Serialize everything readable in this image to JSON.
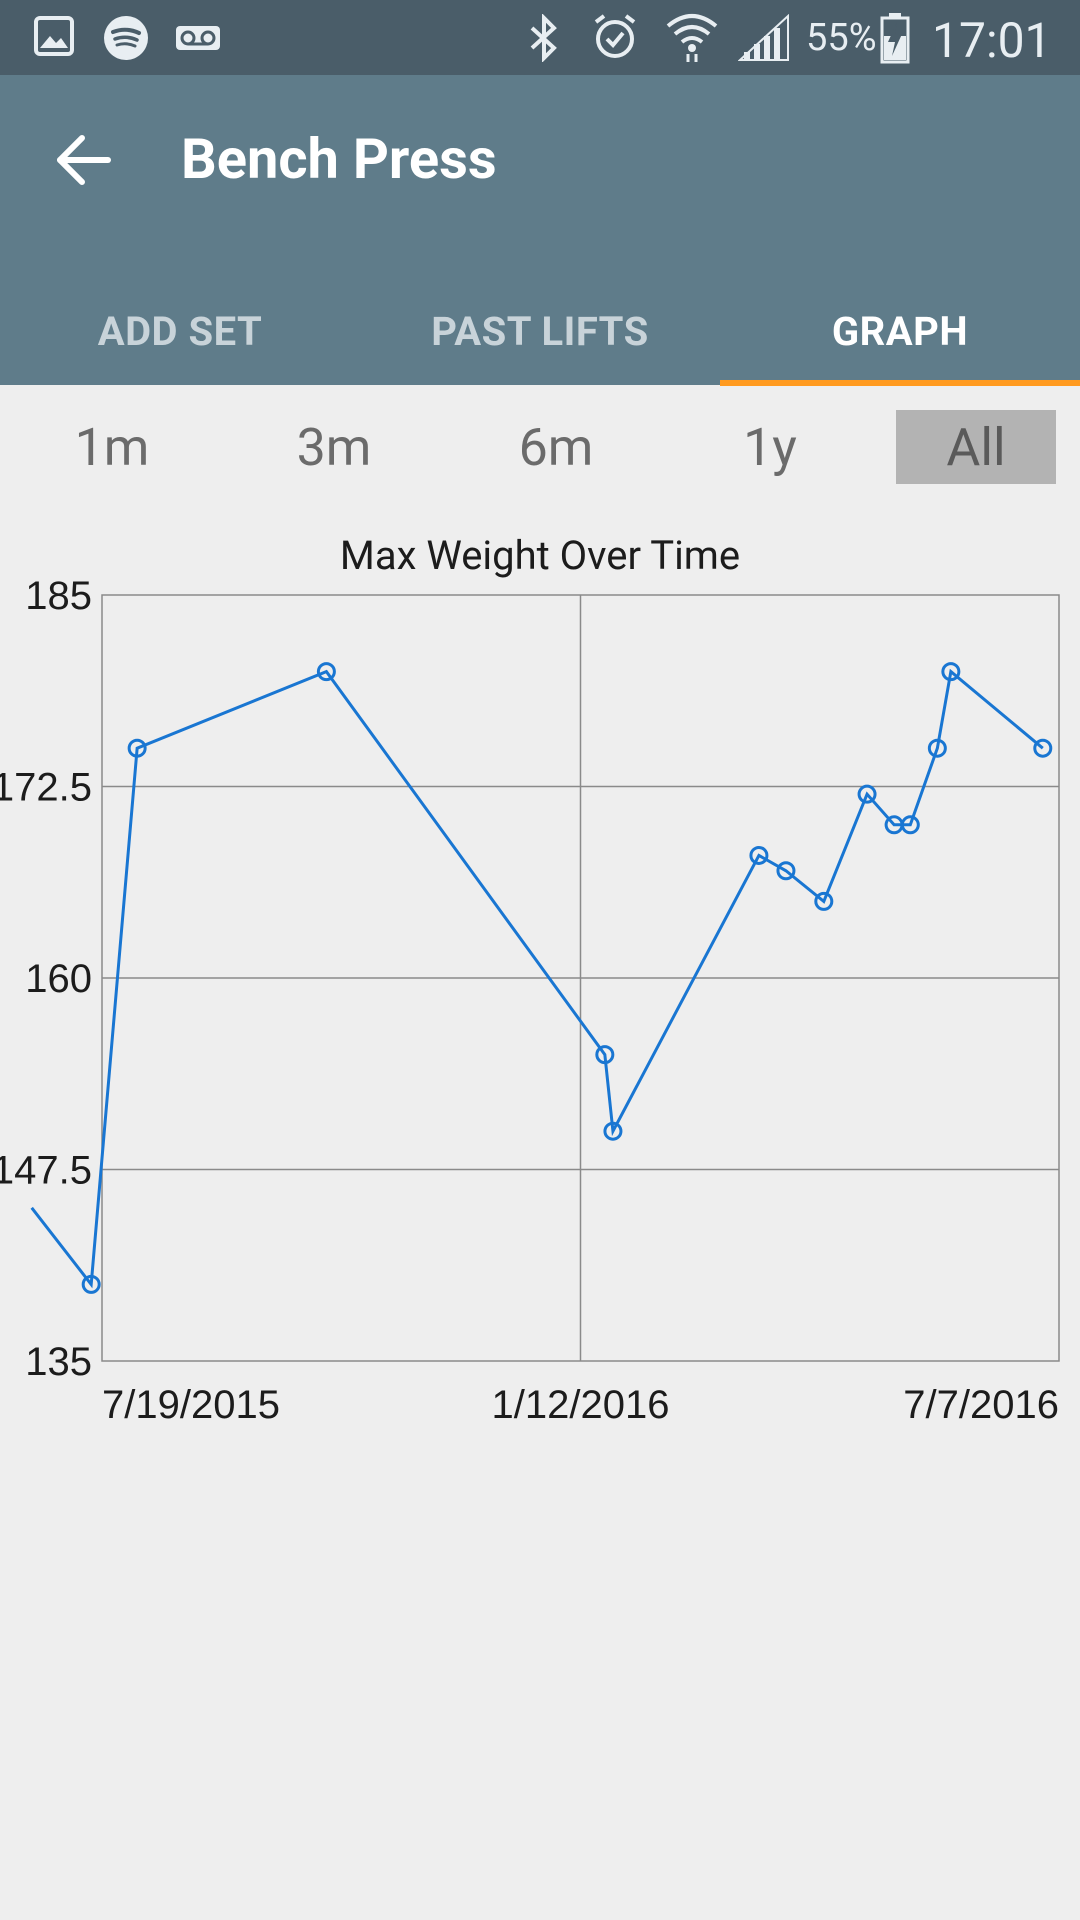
{
  "status_bar": {
    "icons": [
      "image-icon",
      "spotify-icon",
      "voicemail-icon",
      "bluetooth-icon",
      "alarm-icon",
      "wifi-icon",
      "signal-icon",
      "battery-icon"
    ],
    "battery_percent": "55%",
    "time": "17:01"
  },
  "app_bar": {
    "title": "Bench Press",
    "back_icon": "arrow-left-icon",
    "tabs": [
      {
        "label": "ADD SET"
      },
      {
        "label": "PAST LIFTS"
      },
      {
        "label": "GRAPH"
      }
    ],
    "active_tab": "GRAPH",
    "accent_color": "#ff9a1f",
    "bar_color": "#5f7c8a"
  },
  "range_filter": {
    "options": [
      "1m",
      "3m",
      "6m",
      "1y",
      "All"
    ],
    "selected": "All"
  },
  "chart_data": {
    "type": "line",
    "title": "Max Weight Over Time",
    "xlabel": "",
    "ylabel": "",
    "x_tick_labels": [
      "7/19/2015",
      "1/12/2016",
      "7/7/2016"
    ],
    "y_tick_labels": [
      "135",
      "147.5",
      "160",
      "172.5",
      "185"
    ],
    "ylim": [
      135,
      185
    ],
    "xlim": [
      "2015-07-19",
      "2016-07-07"
    ],
    "grid": true,
    "line_color": "#1976d2",
    "series": [
      {
        "points": [
          {
            "x": "2015-06-23",
            "y": 145,
            "marker": false
          },
          {
            "x": "2015-07-15",
            "y": 140
          },
          {
            "x": "2015-08-01",
            "y": 175
          },
          {
            "x": "2015-10-10",
            "y": 180
          },
          {
            "x": "2016-01-21",
            "y": 155
          },
          {
            "x": "2016-01-24",
            "y": 150
          },
          {
            "x": "2016-03-18",
            "y": 168
          },
          {
            "x": "2016-03-28",
            "y": 167
          },
          {
            "x": "2016-04-11",
            "y": 165
          },
          {
            "x": "2016-04-27",
            "y": 172
          },
          {
            "x": "2016-05-07",
            "y": 170
          },
          {
            "x": "2016-05-13",
            "y": 170
          },
          {
            "x": "2016-05-23",
            "y": 175
          },
          {
            "x": "2016-05-28",
            "y": 180
          },
          {
            "x": "2016-07-01",
            "y": 175
          }
        ]
      }
    ]
  }
}
